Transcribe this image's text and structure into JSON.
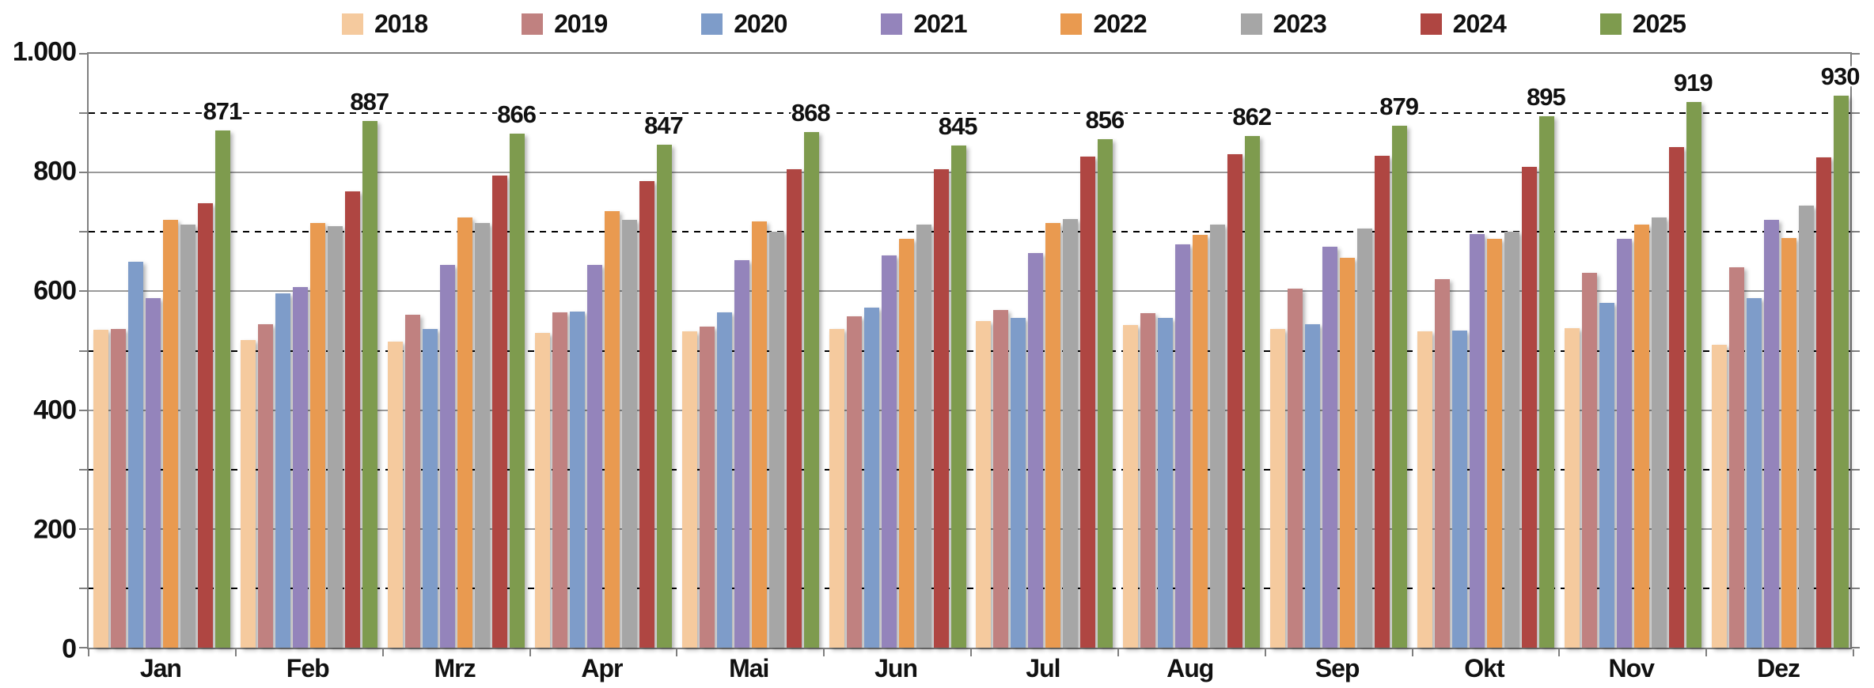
{
  "chart_data": {
    "type": "bar",
    "title": "",
    "categories": [
      "Jan",
      "Feb",
      "Mrz",
      "Apr",
      "Mai",
      "Jun",
      "Jul",
      "Aug",
      "Sep",
      "Okt",
      "Nov",
      "Dez"
    ],
    "series": [
      {
        "name": "2018",
        "color": "#F5CA9E",
        "values": [
          535,
          518,
          515,
          530,
          532,
          537,
          550,
          543,
          536,
          532,
          538,
          510
        ]
      },
      {
        "name": "2019",
        "color": "#C08180",
        "values": [
          537,
          545,
          560,
          565,
          541,
          558,
          568,
          563,
          605,
          620,
          631,
          641
        ]
      },
      {
        "name": "2020",
        "color": "#7E9CC9",
        "values": [
          650,
          597,
          537,
          566,
          565,
          573,
          555,
          555,
          545,
          534,
          580,
          589
        ]
      },
      {
        "name": "2021",
        "color": "#9484BB",
        "values": [
          588,
          607,
          645,
          645,
          653,
          660,
          665,
          679,
          675,
          696,
          689,
          720
        ]
      },
      {
        "name": "2022",
        "color": "#E99A50",
        "values": [
          720,
          715,
          725,
          735,
          718,
          688,
          715,
          695,
          657,
          688,
          713,
          690
        ]
      },
      {
        "name": "2023",
        "color": "#A6A6A6",
        "values": [
          713,
          710,
          715,
          720,
          701,
          712,
          722,
          712,
          706,
          700,
          725,
          745
        ]
      },
      {
        "name": "2024",
        "color": "#AF4642",
        "values": [
          748,
          768,
          795,
          785,
          805,
          805,
          827,
          831,
          828,
          810,
          843,
          826
        ]
      },
      {
        "name": "2025",
        "color": "#7E9B4E",
        "values": [
          871,
          887,
          866,
          847,
          868,
          845,
          856,
          862,
          879,
          895,
          919,
          930
        ],
        "data_labels": true
      }
    ],
    "data_labels_series": "2025",
    "ylim": [
      0,
      1000
    ],
    "y_ticks": [
      {
        "value": 1000,
        "label": "1.000"
      },
      {
        "value": 800,
        "label": "800"
      },
      {
        "value": 600,
        "label": "600"
      },
      {
        "value": 400,
        "label": "400"
      },
      {
        "value": 200,
        "label": "200"
      },
      {
        "value": 0,
        "label": "0"
      }
    ],
    "grid": {
      "major_interval": 200,
      "minor_interval": 100,
      "minor_style": "dashed",
      "major_style": "solid"
    },
    "legend_position": "top",
    "xlabel": "",
    "ylabel": ""
  }
}
